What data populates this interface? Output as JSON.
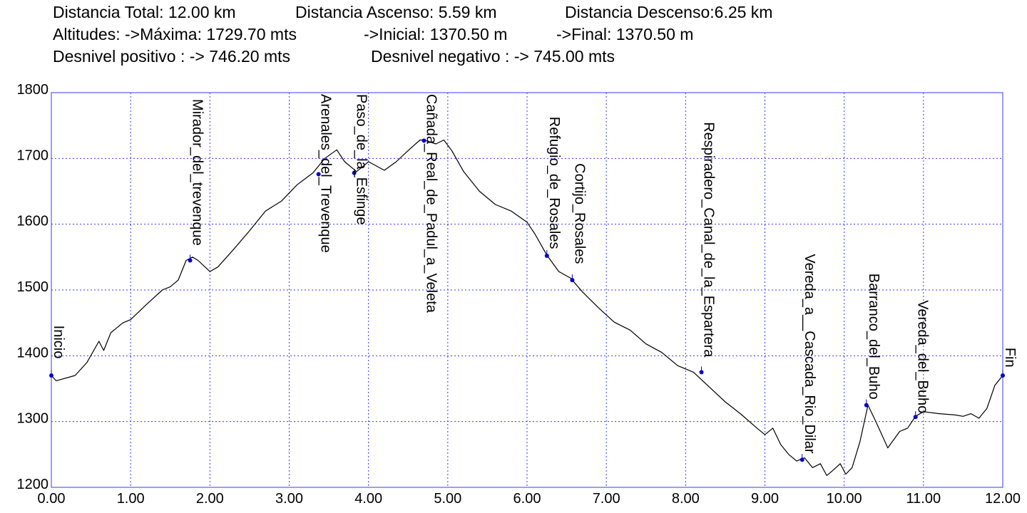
{
  "stats": {
    "row1": [
      "Distancia Total: 12.00 km",
      "Distancia Ascenso: 5.59 km",
      "Distancia Descenso:6.25 km"
    ],
    "row2": [
      "Altitudes: ->Máxima: 1729.70 mts",
      "->Inicial: 1370.50 m",
      "->Final: 1370.50 m"
    ],
    "row3": [
      "Desnivel positivo : -> 746.20 mts",
      "Desnivel negativo : -> 745.00 mts"
    ]
  },
  "colors": {
    "frame": "#3a3aff",
    "grid": "#3a3aff",
    "profile": "#000000",
    "waypoint": "#0000cc",
    "label": "#000000"
  },
  "chart_data": {
    "type": "line",
    "xlabel": "",
    "ylabel": "",
    "xlim": [
      0,
      12
    ],
    "ylim": [
      1200,
      1800
    ],
    "grid": true,
    "x_ticks": [
      "0.00",
      "1.00",
      "2.00",
      "3.00",
      "4.00",
      "5.00",
      "6.00",
      "7.00",
      "8.00",
      "9.00",
      "10.00",
      "11.00",
      "12.00"
    ],
    "y_ticks": [
      "1200",
      "1300",
      "1400",
      "1500",
      "1600",
      "1700",
      "1800"
    ],
    "series": [
      {
        "x": [
          0,
          0.06,
          0.3,
          0.45,
          0.6,
          0.66,
          0.75,
          0.8,
          0.9,
          1.0,
          1.2,
          1.4,
          1.5,
          1.6,
          1.7,
          1.78,
          1.85,
          2.0,
          2.1,
          2.3,
          2.5,
          2.7,
          2.9,
          3.1,
          3.3,
          3.45,
          3.6,
          3.7,
          3.85,
          4.0,
          4.2,
          4.35,
          4.5,
          4.65,
          4.7,
          4.85,
          4.95,
          5.05,
          5.2,
          5.4,
          5.6,
          5.8,
          6.0,
          6.1,
          6.25,
          6.4,
          6.55,
          6.7,
          6.9,
          7.1,
          7.3,
          7.5,
          7.7,
          7.9,
          8.1,
          8.25,
          8.5,
          8.7,
          8.9,
          9.0,
          9.1,
          9.2,
          9.3,
          9.4,
          9.5,
          9.6,
          9.7,
          9.78,
          9.85,
          9.95,
          10.02,
          10.1,
          10.2,
          10.3,
          10.4,
          10.55,
          10.7,
          10.8,
          10.9,
          11.0,
          11.2,
          11.4,
          11.5,
          11.6,
          11.7,
          11.8,
          11.9,
          12.0
        ],
        "y": [
          1370,
          1362,
          1370,
          1390,
          1422,
          1408,
          1435,
          1440,
          1450,
          1455,
          1478,
          1500,
          1505,
          1515,
          1545,
          1550,
          1545,
          1528,
          1535,
          1562,
          1590,
          1620,
          1635,
          1660,
          1678,
          1700,
          1713,
          1695,
          1680,
          1695,
          1682,
          1695,
          1712,
          1728,
          1728,
          1722,
          1728,
          1712,
          1680,
          1650,
          1630,
          1620,
          1603,
          1585,
          1553,
          1528,
          1518,
          1497,
          1473,
          1451,
          1439,
          1418,
          1405,
          1385,
          1375,
          1358,
          1330,
          1311,
          1290,
          1280,
          1290,
          1265,
          1250,
          1240,
          1245,
          1230,
          1236,
          1218,
          1225,
          1236,
          1220,
          1230,
          1270,
          1325,
          1300,
          1260,
          1285,
          1290,
          1308,
          1315,
          1312,
          1310,
          1308,
          1312,
          1305,
          1320,
          1355,
          1370
        ]
      }
    ],
    "waypoints": [
      {
        "x": 0.0,
        "y": 1370,
        "label": "Inicio"
      },
      {
        "x": 1.75,
        "y": 1545,
        "label": "Mirador_del_trevenque"
      },
      {
        "x": 3.37,
        "y": 1676,
        "label": "Arenales_del_Trevenque"
      },
      {
        "x": 3.82,
        "y": 1678,
        "label": "Paso_de_la_Esfinge"
      },
      {
        "x": 4.7,
        "y": 1727,
        "label": "Cañada_Real_de_Padul_a_Veleta"
      },
      {
        "x": 6.25,
        "y": 1552,
        "label": "Refugio_de_Rosales"
      },
      {
        "x": 6.57,
        "y": 1515,
        "label": "Cortijo_Rosales"
      },
      {
        "x": 8.2,
        "y": 1375,
        "label": "Respiradero_Canal_de_la_Espartera"
      },
      {
        "x": 9.47,
        "y": 1242,
        "label": "Vereda_a__Cascada_Rio_Dilar"
      },
      {
        "x": 10.28,
        "y": 1325,
        "label": "Barranco_del_Buho"
      },
      {
        "x": 10.9,
        "y": 1307,
        "label": "Vereda_del_Buho"
      },
      {
        "x": 12.0,
        "y": 1370,
        "label": "Fin"
      }
    ]
  }
}
